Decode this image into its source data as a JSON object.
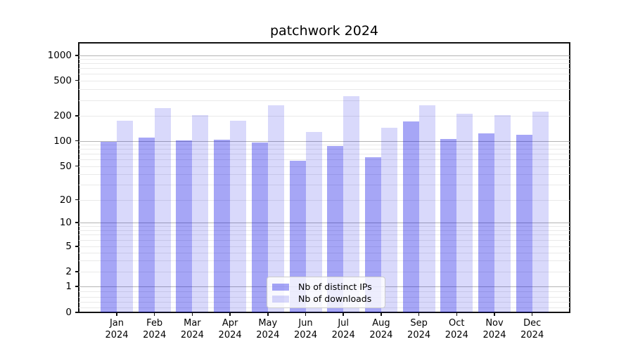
{
  "chart_data": {
    "type": "bar",
    "title": "patchwork 2024",
    "months": [
      "Jan",
      "Feb",
      "Mar",
      "Apr",
      "May",
      "Jun",
      "Jul",
      "Aug",
      "Sep",
      "Oct",
      "Nov",
      "Dec"
    ],
    "year": "2024",
    "series": [
      {
        "name": "Nb of distinct IPs",
        "color": "rgba(0,0,230,0.35)",
        "values": [
          97,
          110,
          101,
          103,
          95,
          58,
          87,
          64,
          172,
          106,
          122,
          119
        ]
      },
      {
        "name": "Nb of downloads",
        "color": "rgba(0,0,230,0.15)",
        "values": [
          173,
          246,
          203,
          173,
          262,
          127,
          330,
          143,
          261,
          213,
          205,
          225
        ]
      }
    ],
    "y_axis": {
      "scale": "symlog",
      "ticks": [
        0,
        1,
        2,
        5,
        10,
        20,
        50,
        100,
        200,
        500,
        1000
      ],
      "tick_labels": [
        "0",
        "1",
        "2",
        "5",
        "10",
        "20",
        "50",
        "100",
        "200",
        "500",
        "1000"
      ],
      "ylim": [
        0,
        1450
      ]
    },
    "grid": true,
    "legend_position": "inside-bottom-center",
    "style": {
      "axis_color": "#111111",
      "major_grid_color": "#b4b4b4",
      "minor_grid_color": "#e9e9e9",
      "background": "#ffffff"
    }
  }
}
